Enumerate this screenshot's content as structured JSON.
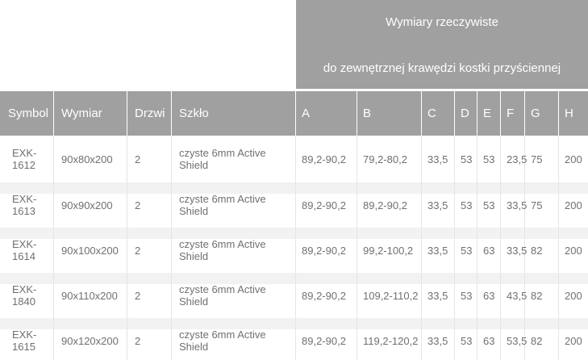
{
  "banner": {
    "line1": "Wymiary rzeczywiste",
    "line2": "do zewnętrznej krawędzi kostki przyściennej"
  },
  "table": {
    "columns": [
      "Symbol",
      "Wymiar",
      "Drzwi",
      "Szkło",
      "A",
      "B",
      "C",
      "D",
      "E",
      "F",
      "G",
      "H"
    ],
    "rows": [
      [
        "EXK-1612",
        "90x80x200",
        "2",
        "czyste 6mm Active Shield",
        "89,2-90,2",
        "79,2-80,2",
        "33,5",
        "53",
        "53",
        "23,5",
        "75",
        "200"
      ],
      [
        "EXK-1613",
        "90x90x200",
        "2",
        "czyste 6mm Active Shield",
        "89,2-90,2",
        "89,2-90,2",
        "33,5",
        "53",
        "53",
        "33,5",
        "75",
        "200"
      ],
      [
        "EXK-1614",
        "90x100x200",
        "2",
        "czyste 6mm Active Shield",
        "89,2-90,2",
        "99,2-100,2",
        "33,5",
        "53",
        "63",
        "33,5",
        "82",
        "200"
      ],
      [
        "EXK-1840",
        "90x110x200",
        "2",
        "czyste 6mm Active Shield",
        "89,2-90,2",
        "109,2-110,2",
        "33,5",
        "53",
        "63",
        "43,5",
        "82",
        "200"
      ],
      [
        "EXK-1615",
        "90x120x200",
        "2",
        "czyste 6mm Active Shield",
        "89,2-90,2",
        "119,2-120,2",
        "33,5",
        "53",
        "63",
        "53,5",
        "82",
        "200"
      ]
    ]
  },
  "colors": {
    "header_bg": "#a0a0a0",
    "header_text": "#ffffff",
    "row_text": "#707070",
    "row_bg": "#ffffff",
    "row_spacer": "#f2f2f2",
    "divider": "#e5e5e5"
  }
}
